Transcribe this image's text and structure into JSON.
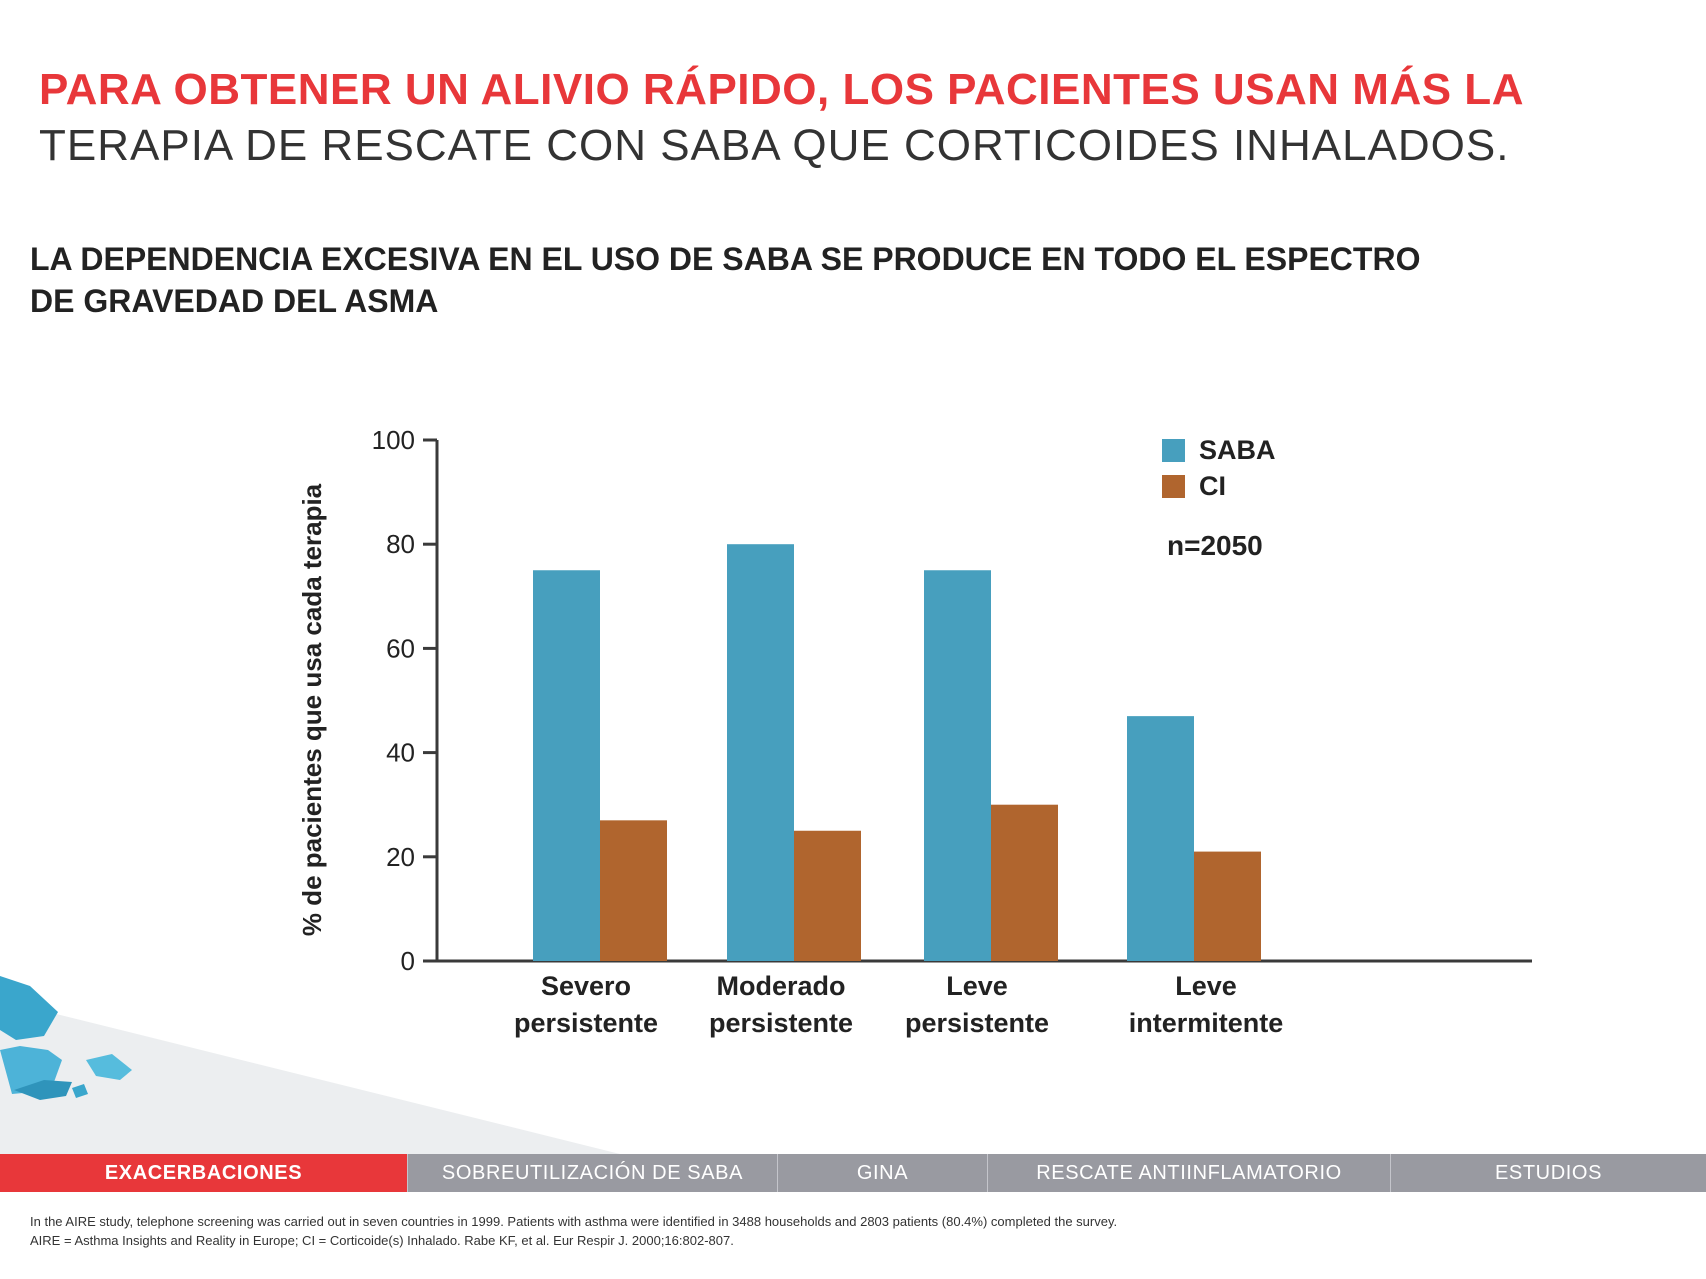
{
  "header": {
    "title_red": "PARA OBTENER UN ALIVIO RÁPIDO, LOS PACIENTES USAN MÁS LA",
    "title_dark": "TERAPIA DE RESCATE CON SABA QUE CORTICOIDES INHALADOS.",
    "subtitle_line1": "LA DEPENDENCIA EXCESIVA EN EL USO DE SABA SE PRODUCE EN TODO EL ESPECTRO",
    "subtitle_line2": "DE GRAVEDAD DEL ASMA"
  },
  "chart_data": {
    "type": "bar",
    "ylabel": "% de pacientes que usa cada terapia",
    "ylim": [
      0,
      100
    ],
    "yticks": [
      "0",
      "20",
      "40",
      "60",
      "80",
      "100"
    ],
    "categories": [
      {
        "line1": "Severo",
        "line2": "persistente"
      },
      {
        "line1": "Moderado",
        "line2": "persistente"
      },
      {
        "line1": "Leve",
        "line2": "persistente"
      },
      {
        "line1": "Leve",
        "line2": "intermitente"
      }
    ],
    "series": [
      {
        "name": "SABA",
        "color": "#479fbe",
        "values": [
          75,
          80,
          75,
          47
        ]
      },
      {
        "name": "CI",
        "color": "#b0652e",
        "values": [
          27,
          25,
          30,
          21
        ]
      }
    ],
    "legend_position": "top-right",
    "annotation": "n=2050",
    "grid": false
  },
  "nav": {
    "tabs": [
      {
        "label": "EXACERBACIONES",
        "active": true
      },
      {
        "label": "SOBREUTILIZACIÓN DE SABA",
        "active": false
      },
      {
        "label": "GINA",
        "active": false
      },
      {
        "label": "RESCATE ANTIINFLAMATORIO",
        "active": false
      },
      {
        "label": "ESTUDIOS",
        "active": false
      }
    ]
  },
  "footnotes": {
    "line1": "In the AIRE study, telephone screening was carried out in seven countries in 1999. Patients with asthma were identified in 3488 households and 2803 patients (80.4%) completed the survey.",
    "line2": "AIRE = Asthma Insights and Reality in Europe; CI = Corticoide(s) Inhalado. Rabe KF, et al. Eur Respir J. 2000;16:802-807."
  },
  "colors": {
    "accent_red": "#e8373a",
    "nav_gray": "#999aa1",
    "saba_blue": "#479fbe",
    "ci_brown": "#b0652e"
  }
}
